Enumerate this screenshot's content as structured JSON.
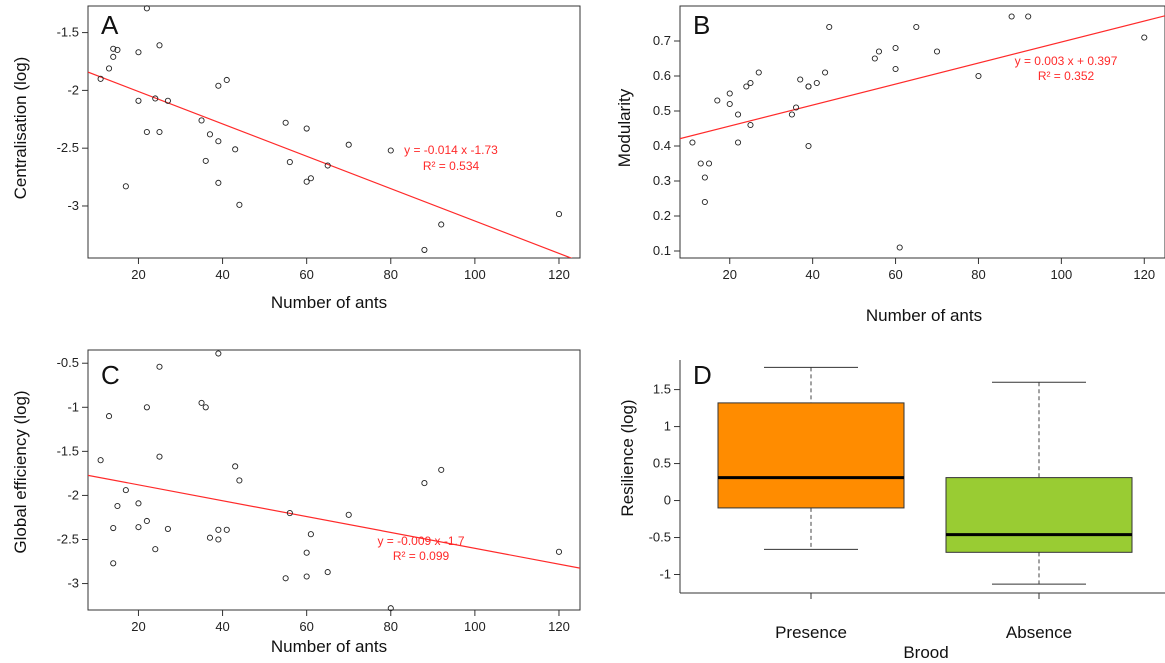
{
  "chart_data": [
    {
      "type": "scatter",
      "panel": "A",
      "xlabel": "Number of ants",
      "ylabel": "Centralisation (log)",
      "xlim": [
        8,
        125
      ],
      "ylim": [
        -3.45,
        -1.27
      ],
      "xticks": [
        20,
        40,
        60,
        80,
        100,
        120
      ],
      "yticks": [
        -3.0,
        -2.5,
        -2.0,
        -1.5
      ],
      "points": [
        [
          11,
          -1.9
        ],
        [
          13,
          -1.81
        ],
        [
          14,
          -1.64
        ],
        [
          14,
          -1.71
        ],
        [
          15,
          -1.65
        ],
        [
          17,
          -2.83
        ],
        [
          20,
          -1.67
        ],
        [
          20,
          -2.09
        ],
        [
          22,
          -1.29
        ],
        [
          22,
          -2.36
        ],
        [
          24,
          -2.07
        ],
        [
          25,
          -1.61
        ],
        [
          25,
          -2.36
        ],
        [
          27,
          -2.09
        ],
        [
          35,
          -2.26
        ],
        [
          36,
          -2.61
        ],
        [
          37,
          -2.38
        ],
        [
          39,
          -1.96
        ],
        [
          39,
          -2.44
        ],
        [
          39,
          -2.8
        ],
        [
          41,
          -1.91
        ],
        [
          43,
          -2.51
        ],
        [
          44,
          -2.99
        ],
        [
          55,
          -2.28
        ],
        [
          56,
          -2.62
        ],
        [
          60,
          -2.33
        ],
        [
          60,
          -2.79
        ],
        [
          61,
          -2.76
        ],
        [
          65,
          -2.65
        ],
        [
          70,
          -2.47
        ],
        [
          80,
          -2.52
        ],
        [
          88,
          -3.38
        ],
        [
          92,
          -3.16
        ],
        [
          120,
          -3.07
        ]
      ],
      "fit": {
        "slope": -0.014,
        "intercept": -1.73
      },
      "fit_color": "#ff2a2a",
      "annotation": [
        "y = -0.014 x  -1.73",
        "R² = 0.534"
      ]
    },
    {
      "type": "scatter",
      "panel": "B",
      "xlabel": "Number of ants",
      "ylabel": "Modularity",
      "xlim": [
        8,
        125
      ],
      "ylim": [
        0.08,
        0.8
      ],
      "xticks": [
        20,
        40,
        60,
        80,
        100,
        120
      ],
      "yticks": [
        0.1,
        0.2,
        0.3,
        0.4,
        0.5,
        0.6,
        0.7
      ],
      "points": [
        [
          11,
          0.41
        ],
        [
          13,
          0.35
        ],
        [
          14,
          0.31
        ],
        [
          14,
          0.24
        ],
        [
          15,
          0.35
        ],
        [
          17,
          0.53
        ],
        [
          20,
          0.55
        ],
        [
          20,
          0.52
        ],
        [
          22,
          0.49
        ],
        [
          22,
          0.41
        ],
        [
          24,
          0.57
        ],
        [
          25,
          0.58
        ],
        [
          25,
          0.46
        ],
        [
          27,
          0.61
        ],
        [
          35,
          0.49
        ],
        [
          36,
          0.51
        ],
        [
          37,
          0.59
        ],
        [
          39,
          0.57
        ],
        [
          39,
          0.57
        ],
        [
          39,
          0.4
        ],
        [
          41,
          0.58
        ],
        [
          43,
          0.61
        ],
        [
          44,
          0.74
        ],
        [
          55,
          0.65
        ],
        [
          56,
          0.67
        ],
        [
          60,
          0.68
        ],
        [
          60,
          0.62
        ],
        [
          61,
          0.11
        ],
        [
          65,
          0.74
        ],
        [
          70,
          0.67
        ],
        [
          80,
          0.6
        ],
        [
          88,
          0.77
        ],
        [
          92,
          0.77
        ],
        [
          120,
          0.71
        ]
      ],
      "fit": {
        "slope": 0.003,
        "intercept": 0.397
      },
      "fit_color": "#ff2a2a",
      "annotation": [
        "y = 0.003 x + 0.397",
        "R² = 0.352"
      ]
    },
    {
      "type": "scatter",
      "panel": "C",
      "xlabel": "Number of ants",
      "ylabel": "Global efficiency (log)",
      "xlim": [
        8,
        125
      ],
      "ylim": [
        -3.3,
        -0.35
      ],
      "xticks": [
        20,
        40,
        60,
        80,
        100,
        120
      ],
      "yticks": [
        -3.0,
        -2.5,
        -2.0,
        -1.5,
        -1.0,
        -0.5
      ],
      "points": [
        [
          11,
          -1.6
        ],
        [
          13,
          -1.1
        ],
        [
          14,
          -2.37
        ],
        [
          14,
          -2.77
        ],
        [
          15,
          -2.12
        ],
        [
          17,
          -1.94
        ],
        [
          20,
          -2.36
        ],
        [
          20,
          -2.09
        ],
        [
          22,
          -2.29
        ],
        [
          22,
          -1.0
        ],
        [
          24,
          -2.61
        ],
        [
          25,
          -0.54
        ],
        [
          25,
          -1.56
        ],
        [
          27,
          -2.38
        ],
        [
          35,
          -0.95
        ],
        [
          36,
          -1.0
        ],
        [
          37,
          -2.48
        ],
        [
          39,
          -2.39
        ],
        [
          39,
          -2.5
        ],
        [
          39,
          -0.39
        ],
        [
          41,
          -2.39
        ],
        [
          43,
          -1.67
        ],
        [
          44,
          -1.83
        ],
        [
          55,
          -2.94
        ],
        [
          56,
          -2.2
        ],
        [
          60,
          -2.65
        ],
        [
          60,
          -2.92
        ],
        [
          61,
          -2.44
        ],
        [
          65,
          -2.87
        ],
        [
          70,
          -2.22
        ],
        [
          80,
          -3.28
        ],
        [
          88,
          -1.86
        ],
        [
          92,
          -1.71
        ],
        [
          120,
          -2.64
        ]
      ],
      "fit": {
        "slope": -0.009,
        "intercept": -1.7
      },
      "fit_color": "#ff2a2a",
      "annotation": [
        "y = -0.009 x  -1.7",
        "R² = 0.099"
      ]
    },
    {
      "type": "box",
      "panel": "D",
      "xlabel": "Brood",
      "ylabel": "Resilience (log)",
      "ylim": [
        -1.25,
        1.9
      ],
      "yticks": [
        -1.0,
        -0.5,
        0.0,
        0.5,
        1.0,
        1.5
      ],
      "categories": [
        "Presence",
        "Absence"
      ],
      "boxes": [
        {
          "whisker_low": -0.66,
          "q1": -0.1,
          "median": 0.31,
          "q3": 1.32,
          "whisker_high": 1.8,
          "color": "#ff8c00"
        },
        {
          "whisker_low": -1.13,
          "q1": -0.7,
          "median": -0.46,
          "q3": 0.31,
          "whisker_high": 1.6,
          "color": "#99cc33"
        }
      ]
    }
  ]
}
